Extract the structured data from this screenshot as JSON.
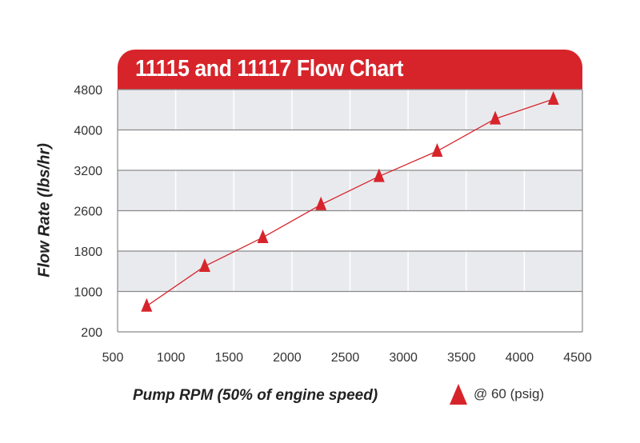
{
  "chart_data": {
    "type": "line",
    "title": "11115 and 11117 Flow Chart",
    "xlabel": "Pump RPM (50% of engine speed)",
    "ylabel": "Flow Rate (lbs/hr)",
    "xlim": [
      500,
      4500
    ],
    "x_ticks": [
      500,
      1000,
      1500,
      2000,
      2500,
      3000,
      3500,
      4000,
      4500
    ],
    "y_ticks": [
      200,
      1000,
      1800,
      2600,
      3200,
      4000,
      4800
    ],
    "grid": true,
    "legend": "bottom-right",
    "series": [
      {
        "name": "@ 60 (psig)",
        "color": "#d7242b",
        "marker": "triangle",
        "x": [
          750,
          1250,
          1750,
          2250,
          2750,
          3250,
          3750,
          4250
        ],
        "y": [
          710,
          1500,
          2070,
          2690,
          3110,
          3580,
          4220,
          4610
        ]
      }
    ]
  },
  "colors": {
    "accent": "#d7242b",
    "band": "#e9eaee"
  }
}
